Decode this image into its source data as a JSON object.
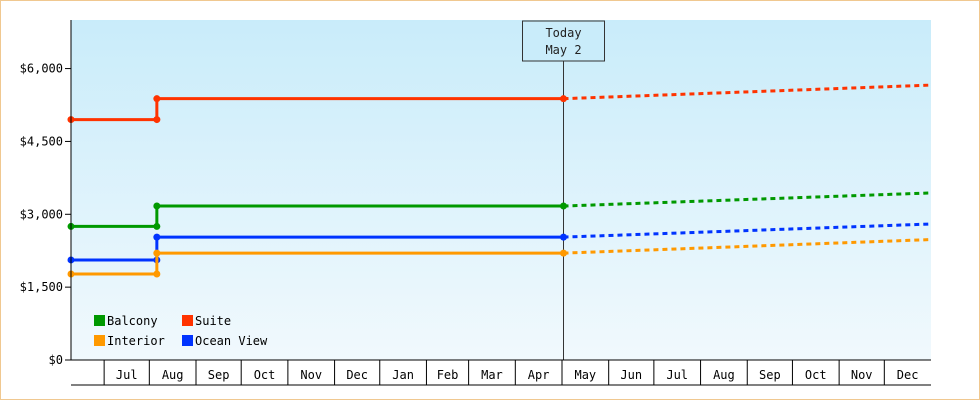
{
  "chart_data": {
    "type": "line",
    "y_ticks": [
      {
        "value": 0,
        "label": "$0"
      },
      {
        "value": 1500,
        "label": "$1,500"
      },
      {
        "value": 3000,
        "label": "$3,000"
      },
      {
        "value": 4500,
        "label": "$4,500"
      },
      {
        "value": 6000,
        "label": "$6,000"
      }
    ],
    "ylim": [
      0,
      7000
    ],
    "x_range_days": [
      -327,
      244
    ],
    "x_months": [
      {
        "label": "Jul",
        "start": -305,
        "end": -275
      },
      {
        "label": "Aug",
        "start": -275,
        "end": -244
      },
      {
        "label": "Sep",
        "start": -244,
        "end": -214
      },
      {
        "label": "Oct",
        "start": -214,
        "end": -183
      },
      {
        "label": "Nov",
        "start": -183,
        "end": -152
      },
      {
        "label": "Dec",
        "start": -152,
        "end": -122
      },
      {
        "label": "Jan",
        "start": -122,
        "end": -91
      },
      {
        "label": "Feb",
        "start": -91,
        "end": -63
      },
      {
        "label": "Mar",
        "start": -63,
        "end": -32
      },
      {
        "label": "Apr",
        "start": -32,
        "end": -1
      },
      {
        "label": "May",
        "start": -1,
        "end": 30
      },
      {
        "label": "Jun",
        "start": 30,
        "end": 60
      },
      {
        "label": "Jul",
        "start": 60,
        "end": 91
      },
      {
        "label": "Aug",
        "start": 91,
        "end": 122
      },
      {
        "label": "Sep",
        "start": 122,
        "end": 152
      },
      {
        "label": "Oct",
        "start": 152,
        "end": 183
      },
      {
        "label": "Nov",
        "start": 183,
        "end": 213
      },
      {
        "label": "Dec",
        "start": 213,
        "end": 244
      }
    ],
    "today": {
      "day": 0,
      "line1": "Today",
      "line2": "May 2"
    },
    "legend_position": "bottom-left",
    "series": [
      {
        "name": "Suite",
        "color": "#ff3300",
        "history": [
          [
            -327,
            4950
          ],
          [
            -270,
            4950
          ],
          [
            -270,
            5380
          ],
          [
            0,
            5380
          ]
        ],
        "points": [
          [
            -327,
            4950
          ],
          [
            -270,
            4950
          ],
          [
            -270,
            5380
          ],
          [
            0,
            5380
          ]
        ],
        "forecast": [
          [
            0,
            5380
          ],
          [
            244,
            5660
          ]
        ]
      },
      {
        "name": "Balcony",
        "color": "#009900",
        "history": [
          [
            -327,
            2750
          ],
          [
            -270,
            2750
          ],
          [
            -270,
            3170
          ],
          [
            0,
            3170
          ]
        ],
        "points": [
          [
            -327,
            2750
          ],
          [
            -270,
            2750
          ],
          [
            -270,
            3170
          ],
          [
            0,
            3170
          ]
        ],
        "forecast": [
          [
            0,
            3170
          ],
          [
            244,
            3440
          ]
        ]
      },
      {
        "name": "Ocean View",
        "color": "#0033ff",
        "history": [
          [
            -327,
            2060
          ],
          [
            -270,
            2060
          ],
          [
            -270,
            2530
          ],
          [
            0,
            2530
          ]
        ],
        "points": [
          [
            -327,
            2060
          ],
          [
            -270,
            2060
          ],
          [
            -270,
            2530
          ],
          [
            0,
            2530
          ]
        ],
        "forecast": [
          [
            0,
            2530
          ],
          [
            244,
            2800
          ]
        ]
      },
      {
        "name": "Interior",
        "color": "#ff9900",
        "history": [
          [
            -327,
            1770
          ],
          [
            -270,
            1770
          ],
          [
            -270,
            2200
          ],
          [
            0,
            2200
          ]
        ],
        "points": [
          [
            -327,
            1770
          ],
          [
            -270,
            1770
          ],
          [
            -270,
            2200
          ],
          [
            0,
            2200
          ]
        ],
        "forecast": [
          [
            0,
            2200
          ],
          [
            244,
            2480
          ]
        ]
      }
    ],
    "legend": [
      {
        "name": "Balcony",
        "color": "#009900"
      },
      {
        "name": "Suite",
        "color": "#ff3300"
      },
      {
        "name": "Interior",
        "color": "#ff9900"
      },
      {
        "name": "Ocean View",
        "color": "#0033ff"
      }
    ]
  }
}
